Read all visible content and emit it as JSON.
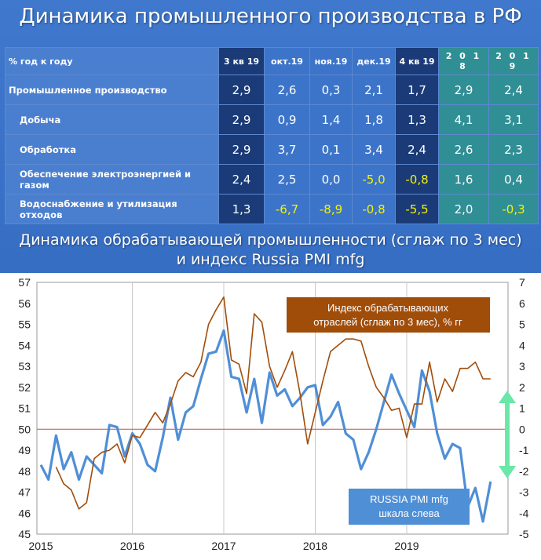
{
  "title": "Динамика промышленного производства в РФ",
  "table": {
    "header": [
      "% год к году",
      "3 кв 19",
      "окт.19",
      "ноя.19",
      "дек.19",
      "4 кв 19",
      "2 0 1 8",
      "2 0 1 9"
    ],
    "rows": [
      {
        "label": "Промышленное производство",
        "values": [
          "2,9",
          "2,6",
          "0,3",
          "2,1",
          "1,7",
          "2,9",
          "2,4"
        ]
      },
      {
        "label": "Добыча",
        "values": [
          "2,9",
          "0,9",
          "1,4",
          "1,8",
          "1,3",
          "4,1",
          "3,1"
        ]
      },
      {
        "label": "Обработка",
        "values": [
          "2,9",
          "3,7",
          "0,1",
          "3,4",
          "2,4",
          "2,6",
          "2,3"
        ]
      },
      {
        "label": "Обеспечение электроэнергией и газом",
        "values": [
          "2,4",
          "2,5",
          "0,0",
          "-5,0",
          "-0,8",
          "1,6",
          "0,4"
        ]
      },
      {
        "label": "Водоснабжение и утилизация отходов",
        "values": [
          "1,3",
          "-6,7",
          "-8,9",
          "-0,8",
          "-5,5",
          "2,0",
          "-0,3"
        ]
      }
    ]
  },
  "chart_title_line1": "Динамика обрабатывающей промышленности (сглаж по 3 мес)",
  "chart_title_line2": "и индекс Russia PMI mfg",
  "colors": {
    "pmi": "#4f8fd6",
    "manuf": "#a14d0a",
    "arrow": "#69e8a8",
    "refline": "#c0504d"
  },
  "chart_data": {
    "type": "line",
    "x_ticks": [
      "2015",
      "2016",
      "2017",
      "2018",
      "2019"
    ],
    "ylim_left": [
      45,
      57
    ],
    "ylim_right": [
      -5,
      7
    ],
    "grid": "vertical",
    "series": [
      {
        "name": "RUSSIA PMI mfg\nшкала слева",
        "axis": "left",
        "x": [
          "2015-01",
          "2015-02",
          "2015-03",
          "2015-04",
          "2015-05",
          "2015-06",
          "2015-07",
          "2015-08",
          "2015-09",
          "2015-10",
          "2015-11",
          "2015-12",
          "2016-01",
          "2016-02",
          "2016-03",
          "2016-04",
          "2016-05",
          "2016-06",
          "2016-07",
          "2016-08",
          "2016-09",
          "2016-10",
          "2016-11",
          "2016-12",
          "2017-01",
          "2017-02",
          "2017-03",
          "2017-04",
          "2017-05",
          "2017-06",
          "2017-07",
          "2017-08",
          "2017-09",
          "2017-10",
          "2017-11",
          "2017-12",
          "2018-01",
          "2018-02",
          "2018-03",
          "2018-04",
          "2018-05",
          "2018-06",
          "2018-07",
          "2018-08",
          "2018-09",
          "2018-10",
          "2018-11",
          "2018-12",
          "2019-01",
          "2019-02",
          "2019-03",
          "2019-04",
          "2019-05",
          "2019-06",
          "2019-07",
          "2019-08",
          "2019-09",
          "2019-10",
          "2019-11",
          "2019-12"
        ],
        "values": [
          48.3,
          47.6,
          49.7,
          48.1,
          48.9,
          47.6,
          48.7,
          48.3,
          47.9,
          50.2,
          50.1,
          48.7,
          49.8,
          49.3,
          48.3,
          48.0,
          49.6,
          51.5,
          49.5,
          50.8,
          51.1,
          52.4,
          53.6,
          53.7,
          54.7,
          52.5,
          52.4,
          50.8,
          52.4,
          50.3,
          52.7,
          51.6,
          51.9,
          51.1,
          51.5,
          52.0,
          52.1,
          50.2,
          50.6,
          51.3,
          49.8,
          49.5,
          48.1,
          48.9,
          50.0,
          51.3,
          52.6,
          51.7,
          50.9,
          50.1,
          52.8,
          51.8,
          49.8,
          48.6,
          49.3,
          49.1,
          46.3,
          47.2,
          45.6,
          47.5
        ]
      },
      {
        "name": "Индекс обрабатывающих\nотраслей (сглаж по 3 мес), % гг",
        "axis": "right",
        "x": [
          "2015-03",
          "2015-04",
          "2015-05",
          "2015-06",
          "2015-07",
          "2015-08",
          "2015-09",
          "2015-10",
          "2015-11",
          "2015-12",
          "2016-01",
          "2016-02",
          "2016-03",
          "2016-04",
          "2016-05",
          "2016-06",
          "2016-07",
          "2016-08",
          "2016-09",
          "2016-10",
          "2016-11",
          "2016-12",
          "2017-01",
          "2017-02",
          "2017-03",
          "2017-04",
          "2017-05",
          "2017-06",
          "2017-07",
          "2017-08",
          "2017-09",
          "2017-10",
          "2017-11",
          "2017-12",
          "2018-01",
          "2018-02",
          "2018-03",
          "2018-04",
          "2018-05",
          "2018-06",
          "2018-07",
          "2018-08",
          "2018-09",
          "2018-10",
          "2018-11",
          "2018-12",
          "2019-01",
          "2019-02",
          "2019-03",
          "2019-04",
          "2019-05",
          "2019-06",
          "2019-07",
          "2019-08",
          "2019-09",
          "2019-10",
          "2019-11",
          "2019-12"
        ],
        "values": [
          -1.8,
          -2.6,
          -2.9,
          -3.8,
          -3.5,
          -1.4,
          -1.1,
          -1.0,
          -0.7,
          -1.6,
          -0.3,
          -0.4,
          0.2,
          0.8,
          0.3,
          1.2,
          2.3,
          2.7,
          2.5,
          3.2,
          5.0,
          5.7,
          6.3,
          3.3,
          3.1,
          1.7,
          5.5,
          5.1,
          3.0,
          2.0,
          2.8,
          3.7,
          1.7,
          -0.7,
          0.8,
          2.3,
          3.7,
          4.0,
          4.3,
          4.3,
          4.2,
          3.0,
          2.0,
          1.5,
          0.9,
          1.0,
          -0.4,
          1.2,
          1.2,
          3.2,
          1.3,
          2.4,
          1.8,
          2.9,
          2.9,
          3.2,
          2.4,
          2.4
        ]
      }
    ]
  }
}
